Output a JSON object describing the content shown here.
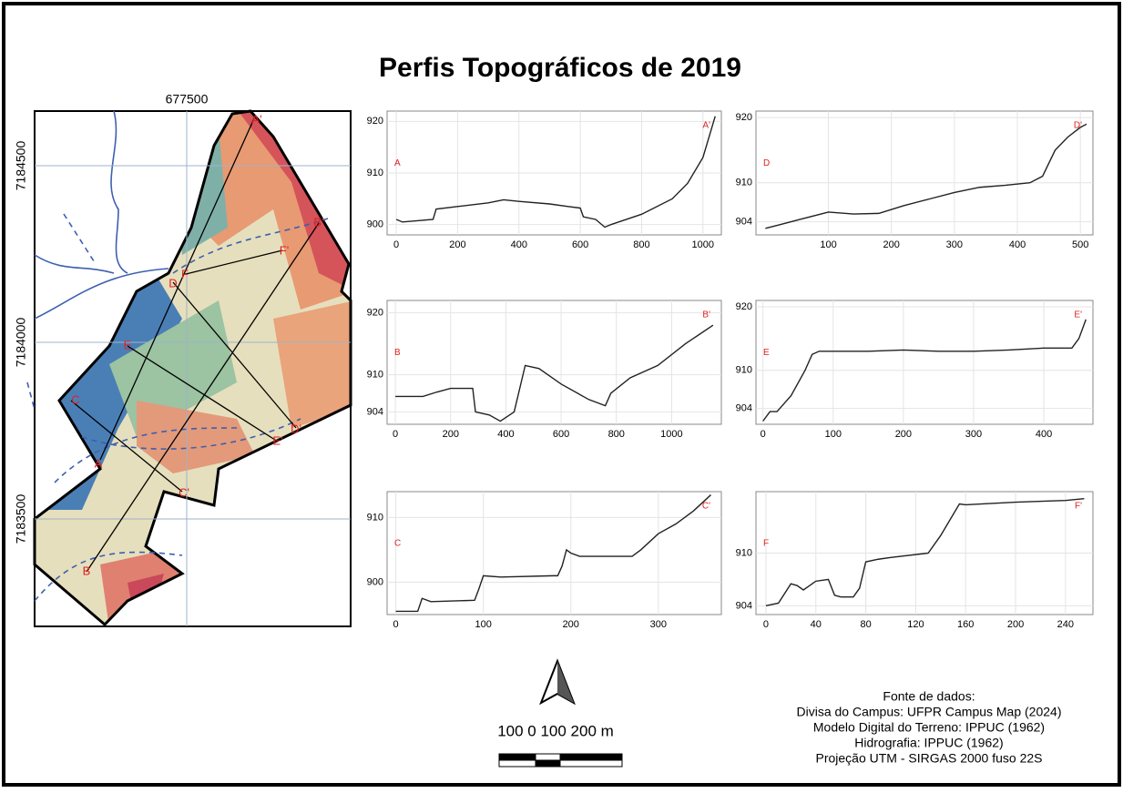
{
  "title": "Perfis Topográficos de 2019",
  "map": {
    "x_label": "677500",
    "y_labels": [
      "7184500",
      "7184000",
      "7183500"
    ],
    "profile_labels": [
      "A",
      "A'",
      "B",
      "B'",
      "C",
      "C'",
      "D",
      "D'",
      "E",
      "E'",
      "F",
      "F'"
    ]
  },
  "chart_data": [
    {
      "type": "line",
      "start_label": "A",
      "end_label": "A'",
      "color": "#222222",
      "x": [
        0,
        20,
        60,
        120,
        130,
        200,
        300,
        350,
        400,
        500,
        560,
        600,
        610,
        650,
        680,
        700,
        800,
        900,
        950,
        1000,
        1040
      ],
      "values": [
        901,
        900.5,
        900.7,
        901,
        903,
        903.5,
        904.2,
        904.8,
        904.5,
        904,
        903.5,
        903.2,
        901.5,
        901,
        899.5,
        900,
        902,
        905,
        908,
        913,
        921
      ],
      "xlim": [
        -30,
        1060
      ],
      "ylim": [
        898,
        922
      ],
      "xticks": [
        0,
        200,
        400,
        600,
        800,
        1000
      ],
      "yticks": [
        900,
        910,
        920
      ]
    },
    {
      "type": "line",
      "start_label": "D",
      "end_label": "D'",
      "color": "#222222",
      "x": [
        0,
        20,
        60,
        100,
        140,
        180,
        220,
        260,
        300,
        340,
        380,
        420,
        440,
        460,
        480,
        500,
        510
      ],
      "values": [
        903,
        903.5,
        904.5,
        905.5,
        905.2,
        905.3,
        906.5,
        907.5,
        908.5,
        909.3,
        909.6,
        910,
        911,
        915,
        917,
        918.5,
        919
      ],
      "xlim": [
        -15,
        520
      ],
      "ylim": [
        902,
        921
      ],
      "xticks": [
        100,
        200,
        300,
        400,
        500
      ],
      "yticks": [
        904,
        910,
        920
      ]
    },
    {
      "type": "line",
      "start_label": "B",
      "end_label": "B'",
      "color": "#222222",
      "x": [
        0,
        100,
        150,
        200,
        280,
        290,
        340,
        380,
        430,
        470,
        520,
        600,
        700,
        760,
        780,
        850,
        950,
        1050,
        1150
      ],
      "values": [
        906.5,
        906.5,
        907.2,
        907.8,
        907.8,
        904,
        903.5,
        902.5,
        904,
        911.5,
        911,
        908.5,
        906,
        905,
        907,
        909.5,
        911.5,
        915,
        918
      ],
      "xlim": [
        -30,
        1180
      ],
      "ylim": [
        902,
        922
      ],
      "xticks": [
        0,
        200,
        400,
        600,
        800,
        1000
      ],
      "yticks": [
        904,
        910,
        920
      ]
    },
    {
      "type": "line",
      "start_label": "E",
      "end_label": "E'",
      "color": "#222222",
      "x": [
        0,
        10,
        20,
        40,
        60,
        70,
        80,
        100,
        150,
        200,
        250,
        300,
        350,
        400,
        440,
        450,
        460
      ],
      "values": [
        902,
        903.5,
        903.5,
        906,
        910,
        912.5,
        913,
        913,
        913,
        913.2,
        913,
        913,
        913.2,
        913.5,
        913.5,
        915,
        918
      ],
      "xlim": [
        -10,
        470
      ],
      "ylim": [
        901.5,
        921
      ],
      "xticks": [
        0,
        100,
        200,
        300,
        400
      ],
      "yticks": [
        904,
        910,
        920
      ]
    },
    {
      "type": "line",
      "start_label": "C",
      "end_label": "C'",
      "color": "#222222",
      "x": [
        0,
        25,
        30,
        40,
        90,
        95,
        100,
        120,
        180,
        185,
        190,
        195,
        200,
        210,
        270,
        280,
        300,
        320,
        340,
        360
      ],
      "values": [
        895.5,
        895.5,
        897.5,
        897,
        897.2,
        899,
        901,
        900.8,
        901,
        901,
        902.5,
        905,
        904.5,
        904,
        904,
        905,
        907.5,
        909,
        911,
        913.5
      ],
      "xlim": [
        -10,
        372
      ],
      "ylim": [
        895,
        914
      ],
      "xticks": [
        0,
        100,
        200,
        300
      ],
      "yticks": [
        900,
        910
      ]
    },
    {
      "type": "line",
      "start_label": "F",
      "end_label": "F'",
      "color": "#222222",
      "x": [
        0,
        10,
        20,
        25,
        30,
        40,
        50,
        55,
        60,
        70,
        75,
        80,
        90,
        100,
        130,
        140,
        155,
        160,
        200,
        240,
        255
      ],
      "values": [
        904,
        904.3,
        906.5,
        906.3,
        905.8,
        906.8,
        907,
        905.2,
        905,
        905,
        906,
        909,
        909.3,
        909.5,
        910,
        912,
        915.6,
        915.5,
        915.8,
        916,
        916.2
      ],
      "xlim": [
        -8,
        262
      ],
      "ylim": [
        903,
        917
      ],
      "xticks": [
        0,
        40,
        80,
        120,
        160,
        200,
        240
      ],
      "yticks": [
        904,
        910
      ]
    }
  ],
  "scale_bar": {
    "label": "100  0  100 200 m"
  },
  "sources": [
    "Fonte de dados:",
    "Divisa do Campus: UFPR Campus Map (2024)",
    "Modelo Digital do Terreno: IPPUC (1962)",
    "Hidrografia:  IPPUC (1962)",
    "Projeção UTM - SIRGAS 2000 fuso 22S"
  ]
}
